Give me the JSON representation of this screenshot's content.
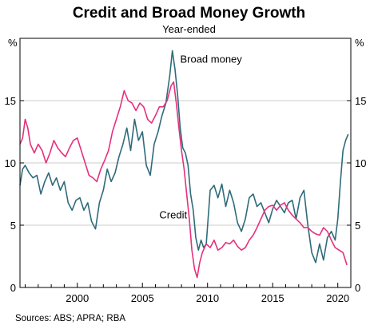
{
  "chart_data": {
    "type": "line",
    "title": "Credit and Broad Money Growth",
    "subtitle": "Year-ended",
    "y_unit_left": "%",
    "y_unit_right": "%",
    "source": "Sources: ABS; APRA; RBA",
    "xlim": [
      1995.6,
      2021.0
    ],
    "ylim": [
      0,
      20
    ],
    "y_ticks": [
      0,
      5,
      10,
      15
    ],
    "x_ticks": [
      2000,
      2005,
      2010,
      2015,
      2020
    ],
    "grid": true,
    "series": [
      {
        "name": "Broad money",
        "color": "#2f6b7a",
        "x": [
          1995.6,
          1995.8,
          1996.0,
          1996.3,
          1996.6,
          1996.9,
          1997.2,
          1997.5,
          1997.8,
          1998.1,
          1998.4,
          1998.7,
          1999.0,
          1999.3,
          1999.6,
          1999.9,
          2000.2,
          2000.5,
          2000.8,
          2001.1,
          2001.4,
          2001.7,
          2002.0,
          2002.3,
          2002.6,
          2002.9,
          2003.2,
          2003.5,
          2003.8,
          2004.1,
          2004.4,
          2004.7,
          2005.0,
          2005.3,
          2005.6,
          2005.9,
          2006.2,
          2006.5,
          2006.8,
          2007.1,
          2007.3,
          2007.5,
          2007.7,
          2007.9,
          2008.1,
          2008.3,
          2008.5,
          2008.7,
          2008.9,
          2009.1,
          2009.3,
          2009.5,
          2009.7,
          2009.9,
          2010.2,
          2010.5,
          2010.8,
          2011.1,
          2011.4,
          2011.7,
          2012.0,
          2012.3,
          2012.6,
          2012.9,
          2013.2,
          2013.5,
          2013.8,
          2014.1,
          2014.4,
          2014.7,
          2015.0,
          2015.3,
          2015.6,
          2015.9,
          2016.2,
          2016.5,
          2016.8,
          2017.1,
          2017.4,
          2017.7,
          2018.0,
          2018.3,
          2018.6,
          2018.9,
          2019.2,
          2019.5,
          2019.8,
          2020.0,
          2020.2,
          2020.4,
          2020.6,
          2020.8
        ],
        "values": [
          8.2,
          9.5,
          9.8,
          9.2,
          8.8,
          9.0,
          7.5,
          8.5,
          9.2,
          8.2,
          8.8,
          7.8,
          8.5,
          6.8,
          6.2,
          7.0,
          7.2,
          6.2,
          6.8,
          5.3,
          4.7,
          6.8,
          7.8,
          9.5,
          8.5,
          9.2,
          10.5,
          11.5,
          12.8,
          11.0,
          13.5,
          11.8,
          12.5,
          9.8,
          9.0,
          11.5,
          12.5,
          13.8,
          14.8,
          17.0,
          19.0,
          17.5,
          15.5,
          12.8,
          11.2,
          10.8,
          9.8,
          7.5,
          6.2,
          4.0,
          3.0,
          3.8,
          3.2,
          3.5,
          7.8,
          8.2,
          7.2,
          8.3,
          6.5,
          7.8,
          6.8,
          5.2,
          4.5,
          5.5,
          7.2,
          7.5,
          6.5,
          6.8,
          6.0,
          5.2,
          6.3,
          7.0,
          6.5,
          6.0,
          6.8,
          7.0,
          5.5,
          7.2,
          7.8,
          5.0,
          2.8,
          2.0,
          3.5,
          2.2,
          4.0,
          4.5,
          3.8,
          5.5,
          8.5,
          11.0,
          11.8,
          12.3
        ]
      },
      {
        "name": "Credit",
        "color": "#e6307d",
        "x": [
          1995.6,
          1995.8,
          1996.0,
          1996.2,
          1996.4,
          1996.7,
          1997.0,
          1997.3,
          1997.6,
          1997.9,
          1998.2,
          1998.5,
          1998.8,
          1999.1,
          1999.4,
          1999.7,
          2000.0,
          2000.3,
          2000.6,
          2000.9,
          2001.2,
          2001.5,
          2001.8,
          2002.1,
          2002.4,
          2002.7,
          2003.0,
          2003.3,
          2003.6,
          2003.9,
          2004.2,
          2004.5,
          2004.8,
          2005.1,
          2005.4,
          2005.7,
          2006.0,
          2006.3,
          2006.6,
          2006.9,
          2007.2,
          2007.4,
          2007.6,
          2007.8,
          2008.0,
          2008.2,
          2008.4,
          2008.6,
          2008.8,
          2009.0,
          2009.2,
          2009.4,
          2009.6,
          2009.9,
          2010.2,
          2010.5,
          2010.8,
          2011.1,
          2011.4,
          2011.7,
          2012.0,
          2012.3,
          2012.6,
          2012.9,
          2013.2,
          2013.5,
          2013.8,
          2014.1,
          2014.4,
          2014.7,
          2015.0,
          2015.3,
          2015.6,
          2015.9,
          2016.2,
          2016.5,
          2016.8,
          2017.1,
          2017.4,
          2017.7,
          2018.0,
          2018.3,
          2018.6,
          2018.9,
          2019.2,
          2019.5,
          2019.8,
          2020.1,
          2020.4,
          2020.7
        ],
        "values": [
          11.5,
          12.0,
          13.5,
          12.8,
          11.5,
          10.8,
          11.5,
          11.0,
          10.0,
          10.8,
          11.8,
          11.2,
          10.8,
          10.5,
          11.2,
          11.8,
          12.0,
          11.0,
          10.0,
          9.0,
          8.8,
          8.5,
          9.5,
          10.2,
          11.0,
          12.5,
          13.5,
          14.5,
          15.8,
          15.0,
          14.8,
          14.2,
          14.8,
          14.5,
          13.5,
          13.2,
          13.8,
          14.5,
          14.5,
          15.0,
          16.2,
          16.5,
          14.8,
          12.8,
          11.0,
          9.5,
          7.5,
          5.5,
          3.0,
          1.5,
          0.8,
          2.0,
          2.8,
          3.5,
          3.2,
          3.8,
          3.0,
          3.2,
          3.6,
          3.5,
          3.8,
          3.3,
          3.0,
          3.2,
          3.8,
          4.2,
          4.8,
          5.5,
          6.2,
          6.5,
          6.6,
          6.2,
          6.6,
          6.8,
          6.2,
          5.8,
          5.5,
          5.2,
          4.8,
          4.8,
          4.5,
          4.3,
          4.2,
          4.8,
          4.5,
          3.8,
          3.2,
          3.0,
          2.8,
          1.8
        ]
      }
    ],
    "annotations": [
      {
        "text": "Broad money",
        "x": 2007.9,
        "y": 18.05,
        "color": "#2f6b7a"
      },
      {
        "text": "Credit",
        "x": 2006.3,
        "y": 5.55,
        "color": "#e6307d"
      }
    ]
  }
}
